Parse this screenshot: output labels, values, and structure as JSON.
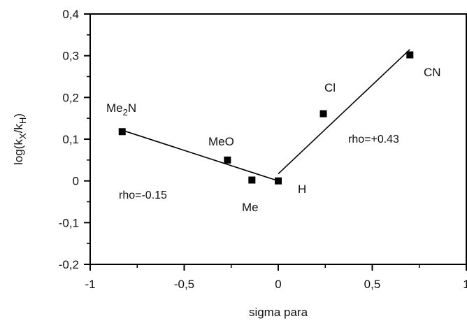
{
  "chart_data": {
    "type": "scatter",
    "title": "",
    "xlabel": "sigma para",
    "ylabel": "log(k_X/k_H)",
    "ylabel_parts": {
      "base": "log(k",
      "sub1": "X",
      "mid": "/k",
      "sub2": "H",
      "end": ")"
    },
    "xlim": [
      -1,
      1
    ],
    "ylim": [
      -0.2,
      0.4
    ],
    "x_ticks": [
      -1,
      -0.5,
      0,
      0.5,
      1
    ],
    "x_tick_labels": [
      "-1",
      "-0,5",
      "0",
      "0,5",
      "1"
    ],
    "y_ticks": [
      -0.2,
      -0.1,
      0,
      0.1,
      0.2,
      0.3,
      0.4
    ],
    "y_tick_labels": [
      "-0,2",
      "-0,1",
      "0",
      "0,1",
      "0,2",
      "0,3",
      "0,4"
    ],
    "grid": false,
    "points": [
      {
        "label": "Me2N",
        "label_main": "Me",
        "label_sub": "2",
        "label_tail": "N",
        "x": -0.83,
        "y": 0.118
      },
      {
        "label": "MeO",
        "x": -0.27,
        "y": 0.05
      },
      {
        "label": "Me",
        "x": -0.14,
        "y": 0.002
      },
      {
        "label": "H",
        "x": 0.0,
        "y": 0.0
      },
      {
        "label": "Cl",
        "x": 0.24,
        "y": 0.161
      },
      {
        "label": "CN",
        "x": 0.7,
        "y": 0.302
      }
    ],
    "fit_lines": [
      {
        "annotation": "rho=-0.15",
        "x": [
          -0.82,
          0.0
        ],
        "y": [
          0.12,
          0.0
        ]
      },
      {
        "annotation": "rho=+0.43",
        "x": [
          0.0,
          0.7
        ],
        "y": [
          0.017,
          0.315
        ]
      }
    ]
  }
}
